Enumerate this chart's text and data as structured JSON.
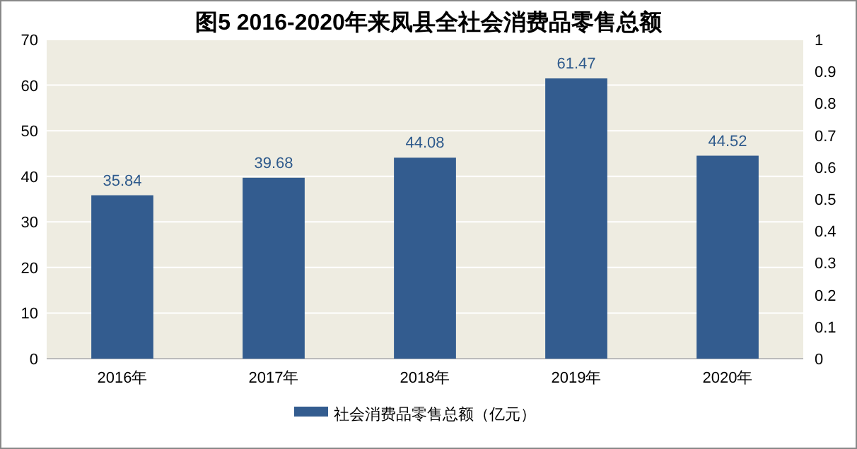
{
  "chart_data": {
    "type": "bar",
    "title": "图5  2016-2020年来凤县全社会消费品零售总额",
    "categories": [
      "2016年",
      "2017年",
      "2018年",
      "2019年",
      "2020年"
    ],
    "series": [
      {
        "name": "社会消费品零售总额（亿元）",
        "color": "#335c8f",
        "values": [
          35.84,
          39.68,
          44.08,
          61.47,
          44.52
        ]
      }
    ],
    "ylim": [
      0,
      70
    ],
    "yticks": [
      0,
      10,
      20,
      30,
      40,
      50,
      60,
      70
    ],
    "y2lim": [
      0,
      1
    ],
    "y2ticks": [
      0,
      0.1,
      0.2,
      0.3,
      0.4,
      0.5,
      0.6,
      0.7,
      0.8,
      0.9,
      1
    ],
    "data_labels": true,
    "grid": "y",
    "legend": "bottom"
  }
}
